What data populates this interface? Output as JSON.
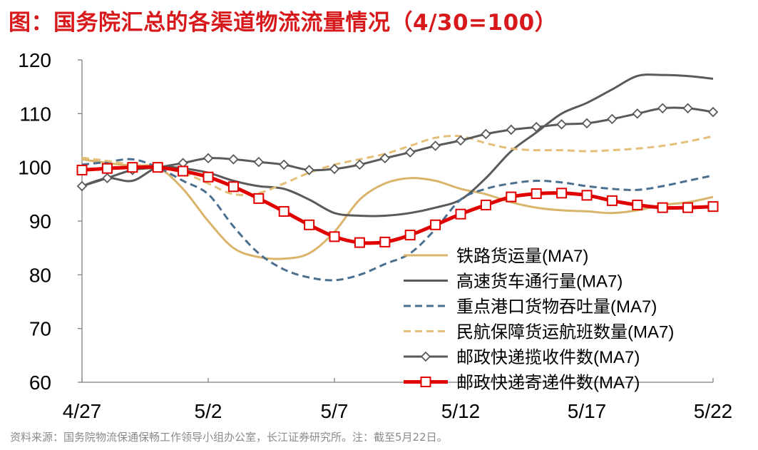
{
  "title": "图：国务院汇总的各渠道物流流量情况（4/30=100）",
  "source": "资料来源：国务院物流保通保畅工作领导小组办公室，长江证券研究所。注：截至5月22日。",
  "chart_data": {
    "type": "line",
    "xlabel": "",
    "ylabel": "",
    "ylim": [
      60,
      120
    ],
    "yticks": [
      60,
      70,
      80,
      90,
      100,
      110,
      120
    ],
    "xlim": [
      "4/27",
      "5/22"
    ],
    "x": [
      "4/27",
      "4/28",
      "4/29",
      "4/30",
      "5/1",
      "5/2",
      "5/3",
      "5/4",
      "5/5",
      "5/6",
      "5/7",
      "5/8",
      "5/9",
      "5/10",
      "5/11",
      "5/12",
      "5/13",
      "5/14",
      "5/15",
      "5/16",
      "5/17",
      "5/18",
      "5/19",
      "5/20",
      "5/21",
      "5/22"
    ],
    "xtick_labels": [
      "4/27",
      "5/2",
      "5/7",
      "5/12",
      "5/17",
      "5/22"
    ],
    "grid": false,
    "legend_position": "bottom-right",
    "series": [
      {
        "name": "铁路货运量(MA7)",
        "color": "#d9b46b",
        "style": "solid",
        "marker": "none",
        "values": [
          101.5,
          100.8,
          100.3,
          100,
          96,
          90,
          85,
          83.3,
          83,
          84,
          88,
          94,
          97,
          98,
          97.5,
          96,
          95,
          93.5,
          92.5,
          92,
          91.8,
          91.5,
          92,
          93,
          93.5,
          94.5
        ]
      },
      {
        "name": "高速货车通行量(MA7)",
        "color": "#5a5a5a",
        "style": "solid",
        "marker": "none",
        "values": [
          96.5,
          98,
          97.5,
          100,
          99.8,
          99,
          97.5,
          96.5,
          96,
          94,
          91.5,
          91,
          91,
          91.5,
          92.5,
          94,
          98,
          103,
          106.5,
          110,
          112,
          114.5,
          117,
          117.2,
          117,
          116.5
        ]
      },
      {
        "name": "重点港口货物吞吐量(MA7)",
        "color": "#4a6f8f",
        "style": "dashed",
        "marker": "none",
        "values": [
          100.5,
          101,
          101.5,
          100,
          97.5,
          95,
          89,
          84,
          81,
          79.5,
          79,
          80,
          82,
          84,
          88.5,
          94,
          96,
          97,
          97.5,
          97.2,
          96.5,
          96,
          95.8,
          96.5,
          97.5,
          98.5
        ]
      },
      {
        "name": "民航保障货运航班数量(MA7)",
        "color": "#e3bf7a",
        "style": "dashed",
        "marker": "none",
        "values": [
          101.8,
          101.2,
          100.5,
          100,
          99,
          97,
          95,
          95.2,
          97,
          99,
          100.5,
          101.5,
          102.5,
          104,
          105.5,
          105.8,
          104.5,
          103.5,
          103.2,
          103.2,
          103,
          103.2,
          103.5,
          104,
          104.8,
          105.8
        ]
      },
      {
        "name": "邮政快递揽收件数(MA7)",
        "color": "#5a5a5a",
        "style": "solid",
        "marker": "diamond",
        "values": [
          96.5,
          98,
          99.5,
          100,
          100.8,
          101.7,
          101.5,
          101,
          100.5,
          99.5,
          99.7,
          100.5,
          101.7,
          102.8,
          104,
          105,
          106.2,
          107,
          107.5,
          108,
          108.2,
          109,
          110,
          111,
          111,
          110.3
        ]
      },
      {
        "name": "邮政快递寄递件数(MA7)",
        "color": "#e00000",
        "style": "solid",
        "marker": "square",
        "values": [
          99.5,
          99.8,
          100,
          100,
          99.3,
          98.2,
          96.4,
          94.2,
          91.8,
          89.3,
          87.1,
          86,
          86.1,
          87.4,
          89.3,
          91.3,
          93,
          94.5,
          95.1,
          95.2,
          94.8,
          93.8,
          93,
          92.5,
          92.5,
          92.7
        ]
      }
    ]
  }
}
